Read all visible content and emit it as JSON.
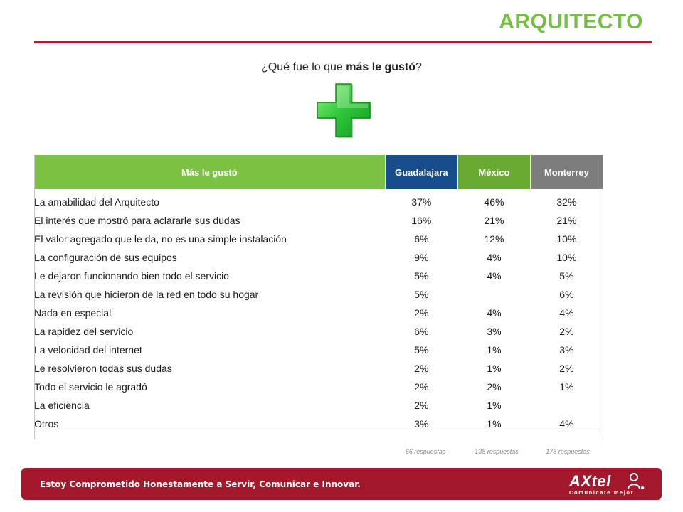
{
  "page": {
    "title": "ARQUITECTO"
  },
  "question": {
    "before": "¿Qué fue lo que ",
    "bold": "más le gustó",
    "after": "?"
  },
  "table": {
    "headers": [
      "Más le gustó",
      "Guadalajara",
      "México",
      "Monterrey"
    ],
    "rows": [
      {
        "label": "La amabilidad del Arquitecto",
        "values": [
          "37%",
          "46%",
          "32%"
        ]
      },
      {
        "label": "El interés que mostró para aclararle sus dudas",
        "values": [
          "16%",
          "21%",
          "21%"
        ]
      },
      {
        "label": "El valor agregado que le da, no es una simple instalación",
        "values": [
          "6%",
          "12%",
          "10%"
        ]
      },
      {
        "label": "La configuración de sus equipos",
        "values": [
          "9%",
          "4%",
          "10%"
        ]
      },
      {
        "label": "Le dejaron funcionando bien todo el servicio",
        "values": [
          "5%",
          "4%",
          "5%"
        ]
      },
      {
        "label": "La revisión que hicieron de la red en todo su hogar",
        "values": [
          "5%",
          "",
          "6%"
        ]
      },
      {
        "label": "Nada en especial",
        "values": [
          "2%",
          "4%",
          "4%"
        ]
      },
      {
        "label": "La rapidez del servicio",
        "values": [
          "6%",
          "3%",
          "2%"
        ]
      },
      {
        "label": "La velocidad del internet",
        "values": [
          "5%",
          "1%",
          "3%"
        ]
      },
      {
        "label": "Le resolvieron todas sus dudas",
        "values": [
          "2%",
          "1%",
          "2%"
        ]
      },
      {
        "label": "Todo el servicio le agradó",
        "values": [
          "2%",
          "2%",
          "1%"
        ]
      },
      {
        "label": "La eficiencia",
        "values": [
          "2%",
          "1%",
          ""
        ]
      },
      {
        "label": "Otros",
        "values": [
          "3%",
          "1%",
          "4%"
        ]
      }
    ],
    "responses": [
      "66 respuestas",
      "138 respuestas",
      "178 respuestas"
    ]
  },
  "footer": {
    "slogan": "Estoy Comprometido Honestamente a Servir, Comunicar e Innovar.",
    "logo_word": "AXtel",
    "logo_tagline": "Comunicate mejor."
  },
  "colors": {
    "title_green": "#74c043",
    "header_green": "#7cc242",
    "guadalajara_blue": "#184d8c",
    "mexico_green": "#6aaa33",
    "monterrey_gray": "#7d7d7d",
    "footer_red": "#a3192b",
    "rule_red": "#b21f2d"
  },
  "icons": {
    "plus": "plus-icon",
    "logo": "axtel-logo-icon"
  }
}
